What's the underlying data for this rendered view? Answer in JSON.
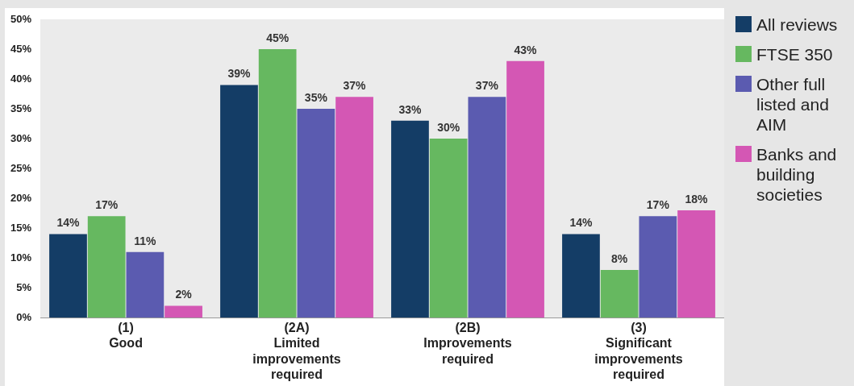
{
  "chart_data": {
    "type": "bar",
    "categories": [
      "(1)\nGood",
      "(2A)\nLimited\nimprovements\nrequired",
      "(2B)\nImprovements\nrequired",
      "(3)\nSignificant\nimprovements\nrequired"
    ],
    "series": [
      {
        "name": "All reviews",
        "color": "#143d66",
        "values": [
          14,
          39,
          33,
          14
        ],
        "value_labels": [
          "14%",
          "39%",
          "33%",
          "14%"
        ]
      },
      {
        "name": "FTSE 350",
        "color": "#66b860",
        "values": [
          17,
          45,
          30,
          8
        ],
        "value_labels": [
          "17%",
          "45%",
          "30%",
          "8%"
        ]
      },
      {
        "name": "Other full listed and AIM",
        "color": "#5b5bb0",
        "values": [
          11,
          35,
          37,
          17
        ],
        "value_labels": [
          "11%",
          "35%",
          "37%",
          "17%"
        ]
      },
      {
        "name": "Banks and building societies",
        "color": "#d457b4",
        "values": [
          2,
          37,
          43,
          18
        ],
        "value_labels": [
          "2%",
          "37%",
          "43%",
          "18%"
        ]
      }
    ],
    "ylim": [
      0,
      50
    ],
    "yticks": [
      {
        "value": 0,
        "label": "0%"
      },
      {
        "value": 5,
        "label": "5%"
      },
      {
        "value": 10,
        "label": "10%"
      },
      {
        "value": 15,
        "label": "15%"
      },
      {
        "value": 20,
        "label": "20%"
      },
      {
        "value": 25,
        "label": "25%"
      },
      {
        "value": 30,
        "label": "30%"
      },
      {
        "value": 35,
        "label": "35%"
      },
      {
        "value": 40,
        "label": "40%"
      },
      {
        "value": 45,
        "label": "45%"
      },
      {
        "value": 50,
        "label": "50%"
      }
    ],
    "grid": false,
    "legend": "right"
  }
}
